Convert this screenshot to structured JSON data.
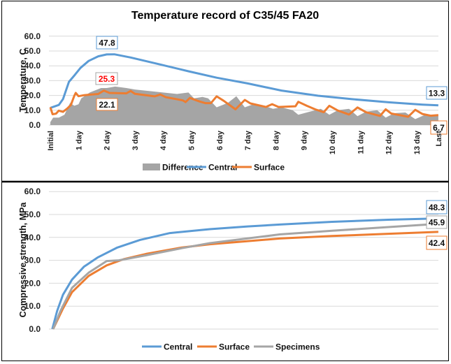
{
  "colors": {
    "central": "#5B9BD5",
    "surface": "#ED7D31",
    "difference": "#A5A5A5",
    "specimens": "#A5A5A5",
    "grid": "#D9D9D9",
    "red_label": "#FF0000"
  },
  "chart_data": [
    {
      "type": "line",
      "title": "Temperature record of C35/45 FA20",
      "xlabel": "",
      "ylabel": "Temperature, C",
      "ylim": [
        0,
        60
      ],
      "yticks": [
        "0.0",
        "10.0",
        "20.0",
        "30.0",
        "40.0",
        "50.0",
        "60.0"
      ],
      "x_unit": "day",
      "xlim": [
        0,
        13.77
      ],
      "xticks": [
        {
          "label": "Initial",
          "x": 0
        },
        {
          "label": "1 day",
          "x": 1
        },
        {
          "label": "2 day",
          "x": 2
        },
        {
          "label": "3 day",
          "x": 3
        },
        {
          "label": "4 day",
          "x": 4
        },
        {
          "label": "5 day",
          "x": 5
        },
        {
          "label": "6 day",
          "x": 6
        },
        {
          "label": "7 day",
          "x": 7
        },
        {
          "label": "8 day",
          "x": 8
        },
        {
          "label": "9 day",
          "x": 9
        },
        {
          "label": "10 day",
          "x": 10
        },
        {
          "label": "11 day",
          "x": 11
        },
        {
          "label": "12 day",
          "x": 12
        },
        {
          "label": "13 day",
          "x": 13
        },
        {
          "label": "Last",
          "x": 13.77
        }
      ],
      "grid": true,
      "legend_position": "bottom",
      "series": [
        {
          "name": "Difference",
          "kind": "area",
          "color_key": "difference",
          "x": [
            0,
            0.1,
            0.3,
            0.5,
            0.7,
            0.85,
            1.0,
            1.1,
            1.4,
            1.8,
            2.0,
            2.3,
            2.7,
            3.0,
            3.5,
            4.0,
            4.5,
            4.9,
            5.1,
            5.4,
            5.6,
            5.9,
            6.3,
            6.6,
            6.9,
            7.2,
            7.6,
            7.9,
            8.2,
            8.6,
            8.8,
            9.2,
            9.6,
            9.9,
            10.2,
            10.6,
            10.9,
            11.2,
            11.6,
            11.9,
            12.2,
            12.6,
            12.95,
            13.3,
            13.77
          ],
          "y": [
            2,
            5,
            5,
            7,
            15,
            13,
            14,
            18,
            22,
            25,
            25,
            26,
            25,
            24,
            23,
            22,
            21,
            22,
            18,
            19,
            18,
            12,
            15,
            19.5,
            12,
            14,
            13,
            11,
            12,
            10,
            7,
            9,
            11,
            7,
            10,
            11,
            6,
            9,
            10,
            5,
            8,
            8.5,
            4,
            7,
            6.6
          ]
        },
        {
          "name": "Central",
          "kind": "line",
          "color_key": "central",
          "x": [
            0,
            0.3,
            0.45,
            0.66,
            0.87,
            1.07,
            1.36,
            1.7,
            2.0,
            2.27,
            2.85,
            3.9,
            4.9,
            5.9,
            7.0,
            8.2,
            9.5,
            10.7,
            12.0,
            13.2,
            13.77
          ],
          "y": [
            11.6,
            13.6,
            17.5,
            29.2,
            33.9,
            38.6,
            43.3,
            46.4,
            47.7,
            47.8,
            45.6,
            40.9,
            36.3,
            32.0,
            28.1,
            23.3,
            19.8,
            17.5,
            15.4,
            13.8,
            13.3
          ]
        },
        {
          "name": "Surface",
          "kind": "line",
          "color_key": "surface",
          "x": [
            0,
            0.08,
            0.2,
            0.3,
            0.45,
            0.6,
            0.73,
            0.85,
            0.9,
            1.0,
            1.2,
            1.7,
            1.9,
            2.1,
            2.7,
            2.85,
            3.0,
            3.7,
            3.9,
            4.1,
            4.7,
            4.8,
            4.95,
            5.3,
            5.5,
            5.7,
            5.9,
            6.15,
            6.57,
            6.9,
            7.1,
            7.65,
            7.87,
            8.1,
            8.7,
            8.8,
            9.1,
            9.4,
            9.7,
            9.9,
            10.2,
            10.6,
            10.9,
            11.2,
            11.7,
            11.9,
            12.1,
            12.7,
            12.95,
            13.2,
            13.5,
            13.77
          ],
          "y": [
            12,
            7.3,
            7.7,
            9.7,
            8.9,
            11.2,
            13.6,
            19.8,
            21.7,
            19.5,
            20.2,
            21,
            23.3,
            21.7,
            21.4,
            23,
            21.1,
            19.4,
            20.6,
            18.8,
            16.7,
            15.5,
            18.3,
            15.9,
            14.8,
            14.8,
            19.4,
            16.4,
            10.6,
            17,
            14.6,
            12.2,
            14.1,
            12.2,
            12.7,
            15.7,
            13,
            10.6,
            8.7,
            13,
            9.8,
            7.1,
            11.9,
            8.7,
            6.2,
            10.6,
            7.8,
            5.6,
            10.3,
            7.5,
            6.3,
            6.7
          ]
        }
      ],
      "data_labels": [
        {
          "text": "47.8",
          "series": "Central",
          "border_key": "central",
          "text_color_key": null
        },
        {
          "text": "25.3",
          "series": "Difference",
          "border_key": "difference",
          "text_color_key": "red_label"
        },
        {
          "text": "22.1",
          "series": "Surface",
          "border_key": "surface",
          "text_color_key": null
        },
        {
          "text": "13.3",
          "series": "Central",
          "border_key": "central",
          "text_color_key": null
        },
        {
          "text": "6.7",
          "series": "Surface",
          "border_key": "surface",
          "text_color_key": null
        }
      ]
    },
    {
      "type": "line",
      "title": "",
      "xlabel": "",
      "ylabel": "Compressive strength, MPa",
      "ylim": [
        0,
        60
      ],
      "yticks": [
        "0.0",
        "10.0",
        "20.0",
        "30.0",
        "40.0",
        "50.0",
        "60.0"
      ],
      "x_unit": "day",
      "xlim": [
        0,
        13.77
      ],
      "grid": true,
      "legend_position": "bottom",
      "series": [
        {
          "name": "Central",
          "color_key": "central",
          "x": [
            0.07,
            0.24,
            0.45,
            0.77,
            1.19,
            1.69,
            2.36,
            3.18,
            4.24,
            5.66,
            7.0,
            8.14,
            10.0,
            12.0,
            13.77
          ],
          "y": [
            0,
            7.9,
            15,
            21.6,
            27.2,
            31.3,
            35.5,
            38.9,
            41.9,
            43.6,
            44.8,
            45.6,
            46.8,
            47.7,
            48.3
          ]
        },
        {
          "name": "Surface",
          "color_key": "surface",
          "x": [
            0.1,
            0.45,
            0.77,
            1.36,
            2.0,
            2.6,
            3.4,
            4.67,
            5.66,
            8.14,
            10.0,
            12.0,
            13.77
          ],
          "y": [
            0,
            9,
            16.1,
            23.2,
            27.8,
            30.5,
            32.8,
            35.6,
            37,
            39.5,
            40.6,
            41.6,
            42.4
          ]
        },
        {
          "name": "Specimens",
          "color_key": "specimens",
          "x": [
            0.1,
            0.36,
            0.77,
            1.36,
            2.0,
            2.43,
            3.4,
            4.67,
            5.66,
            8.14,
            10.0,
            12.0,
            13.77
          ],
          "y": [
            0,
            7.9,
            18,
            24.6,
            29.7,
            30,
            32.2,
            35.3,
            37.5,
            41.3,
            42.9,
            44.5,
            45.9
          ]
        }
      ],
      "data_labels": [
        {
          "text": "48.3",
          "series": "Central",
          "border_key": "central"
        },
        {
          "text": "45.9",
          "series": "Specimens",
          "border_key": "specimens"
        },
        {
          "text": "42.4",
          "series": "Surface",
          "border_key": "surface"
        }
      ]
    }
  ]
}
